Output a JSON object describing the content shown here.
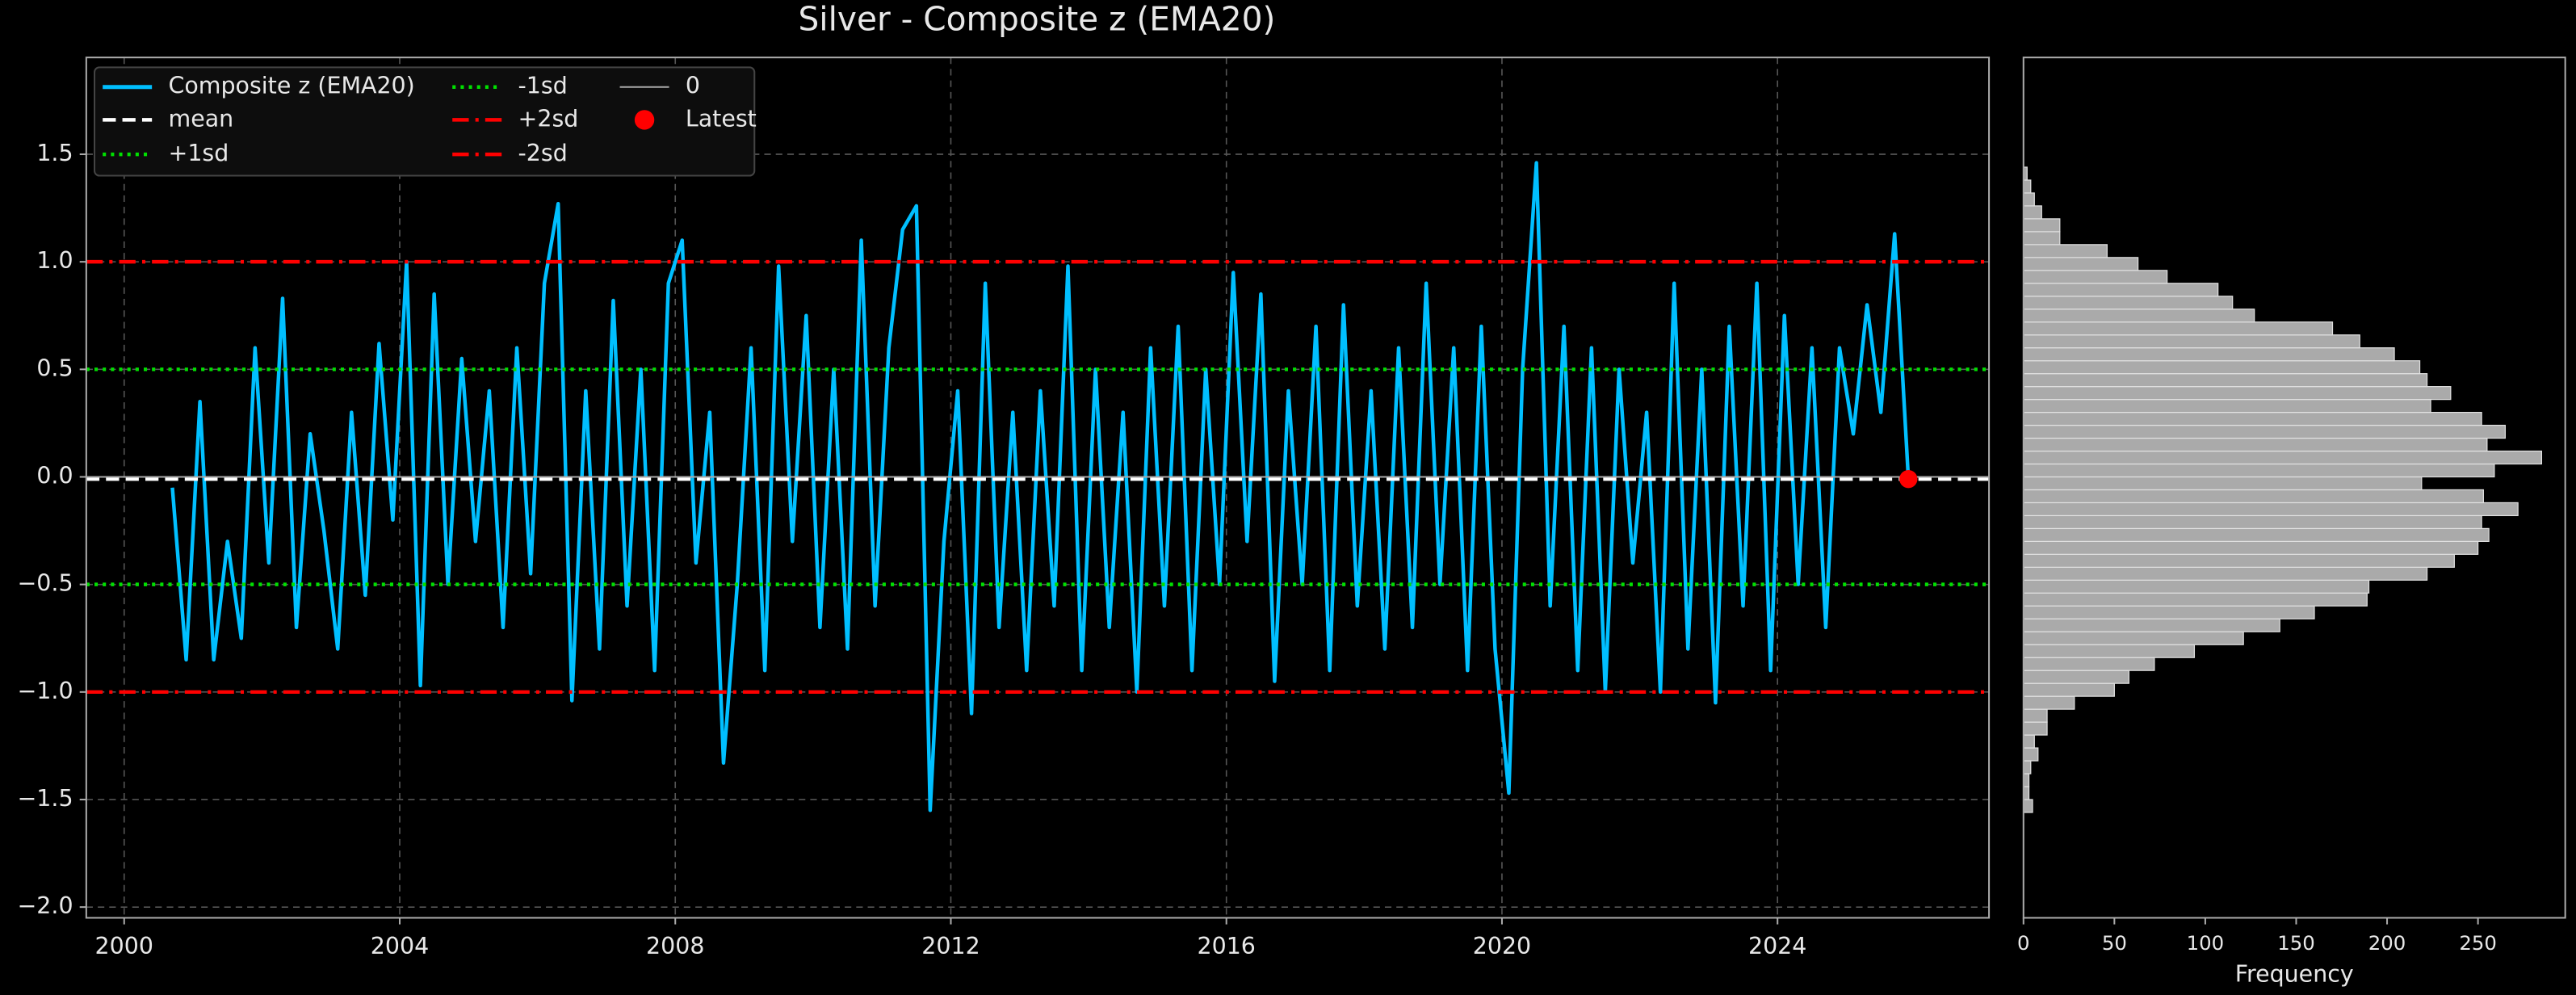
{
  "chart_data": [
    {
      "type": "line",
      "title": "Silver - Composite z (EMA20)",
      "x": [
        2000.7,
        2000.9,
        2001.1,
        2001.3,
        2001.5,
        2001.7,
        2001.9,
        2002.1,
        2002.3,
        2002.5,
        2002.7,
        2002.9,
        2003.1,
        2003.3,
        2003.5,
        2003.7,
        2003.9,
        2004.1,
        2004.3,
        2004.5,
        2004.7,
        2004.9,
        2005.1,
        2005.3,
        2005.5,
        2005.7,
        2005.9,
        2006.1,
        2006.3,
        2006.5,
        2006.7,
        2006.9,
        2007.1,
        2007.3,
        2007.5,
        2007.7,
        2007.9,
        2008.1,
        2008.3,
        2008.5,
        2008.7,
        2008.9,
        2009.1,
        2009.3,
        2009.5,
        2009.7,
        2009.9,
        2010.1,
        2010.3,
        2010.5,
        2010.7,
        2010.9,
        2011.1,
        2011.3,
        2011.5,
        2011.7,
        2011.9,
        2012.1,
        2012.3,
        2012.5,
        2012.7,
        2012.9,
        2013.1,
        2013.3,
        2013.5,
        2013.7,
        2013.9,
        2014.1,
        2014.3,
        2014.5,
        2014.7,
        2014.9,
        2015.1,
        2015.3,
        2015.5,
        2015.7,
        2015.9,
        2016.1,
        2016.3,
        2016.5,
        2016.7,
        2016.9,
        2017.1,
        2017.3,
        2017.5,
        2017.7,
        2017.9,
        2018.1,
        2018.3,
        2018.5,
        2018.7,
        2018.9,
        2019.1,
        2019.3,
        2019.5,
        2019.7,
        2019.9,
        2020.1,
        2020.3,
        2020.5,
        2020.7,
        2020.9,
        2021.1,
        2021.3,
        2021.5,
        2021.7,
        2021.9,
        2022.1,
        2022.3,
        2022.5,
        2022.7,
        2022.9,
        2023.1,
        2023.3,
        2023.5,
        2023.7,
        2023.9,
        2024.1,
        2024.3,
        2024.5,
        2024.7,
        2024.9,
        2025.1,
        2025.3,
        2025.5,
        2025.7,
        2025.9
      ],
      "series": [
        {
          "name": "Composite z (EMA20)",
          "color": "#00bfff",
          "values": [
            -0.05,
            -0.85,
            0.35,
            -0.85,
            -0.3,
            -0.75,
            0.6,
            -0.4,
            0.83,
            -0.7,
            0.2,
            -0.25,
            -0.8,
            0.3,
            -0.55,
            0.62,
            -0.2,
            1.0,
            -0.97,
            0.85,
            -0.5,
            0.55,
            -0.3,
            0.4,
            -0.7,
            0.6,
            -0.45,
            0.9,
            1.27,
            -1.04,
            0.4,
            -0.8,
            0.82,
            -0.6,
            0.5,
            -0.9,
            0.9,
            1.1,
            -0.4,
            0.3,
            -1.33,
            -0.5,
            0.6,
            -0.9,
            0.98,
            -0.3,
            0.75,
            -0.7,
            0.5,
            -0.8,
            1.1,
            -0.6,
            0.6,
            1.15,
            1.26,
            -1.55,
            -0.3,
            0.4,
            -1.1,
            0.9,
            -0.7,
            0.3,
            -0.9,
            0.4,
            -0.6,
            0.98,
            -0.9,
            0.5,
            -0.7,
            0.3,
            -1.0,
            0.6,
            -0.6,
            0.7,
            -0.9,
            0.5,
            -0.5,
            0.95,
            -0.3,
            0.85,
            -0.95,
            0.4,
            -0.5,
            0.7,
            -0.9,
            0.8,
            -0.6,
            0.4,
            -0.8,
            0.6,
            -0.7,
            0.9,
            -0.5,
            0.6,
            -0.9,
            0.7,
            -0.8,
            -1.47,
            0.5,
            1.46,
            -0.6,
            0.7,
            -0.9,
            0.6,
            -1.0,
            0.5,
            -0.4,
            0.3,
            -1.0,
            0.9,
            -0.8,
            0.5,
            -1.05,
            0.7,
            -0.6,
            0.9,
            -0.9,
            0.75,
            -0.5,
            0.6,
            -0.7,
            0.6,
            0.2,
            0.8,
            0.3,
            1.13,
            -0.01
          ]
        }
      ],
      "hlines": [
        {
          "name": "mean",
          "value": -0.01,
          "color": "#ffffff",
          "style": "dashed"
        },
        {
          "name": "+1sd",
          "value": 0.5,
          "color": "#00e000",
          "style": "dotted"
        },
        {
          "name": "-1sd",
          "value": -0.5,
          "color": "#00e000",
          "style": "dotted"
        },
        {
          "name": "+2sd",
          "value": 1.0,
          "color": "#ff0000",
          "style": "dashdot"
        },
        {
          "name": "-2sd",
          "value": -1.0,
          "color": "#ff0000",
          "style": "dashdot"
        },
        {
          "name": "0",
          "value": 0,
          "color": "#aaaaaa",
          "style": "solid"
        }
      ],
      "latest": {
        "name": "Latest",
        "x": 2025.9,
        "value": -0.01,
        "color": "#ff0000"
      },
      "xlim": [
        1999.45,
        2027.07
      ],
      "xticks": [
        2000,
        2004,
        2008,
        2012,
        2016,
        2020,
        2024
      ],
      "ylim": [
        -2.05,
        1.95
      ],
      "yticks": [
        {
          "value": -2.0,
          "label": "−2.0"
        },
        {
          "value": -1.5,
          "label": "−1.5"
        },
        {
          "value": -1.0,
          "label": "−1.0"
        },
        {
          "value": -0.5,
          "label": "−0.5"
        },
        {
          "value": 0.0,
          "label": "0.0"
        },
        {
          "value": 0.5,
          "label": "0.5"
        },
        {
          "value": 1.0,
          "label": "1.0"
        },
        {
          "value": 1.5,
          "label": "1.5"
        }
      ],
      "grid": true,
      "legend": "upper left"
    },
    {
      "type": "histogram",
      "orientation": "horizontal",
      "color": "#aaaaaa",
      "bins": [
        -1.56,
        -1.5,
        -1.44,
        -1.38,
        -1.32,
        -1.26,
        -1.2,
        -1.14,
        -1.08,
        -1.02,
        -0.96,
        -0.9,
        -0.84,
        -0.78,
        -0.72,
        -0.66,
        -0.6,
        -0.54,
        -0.48,
        -0.42,
        -0.36,
        -0.3,
        -0.24,
        -0.18,
        -0.12,
        -0.06,
        0.0,
        0.06,
        0.12,
        0.18,
        0.24,
        0.3,
        0.36,
        0.42,
        0.48,
        0.54,
        0.6,
        0.66,
        0.72,
        0.78,
        0.84,
        0.9,
        0.96,
        1.02,
        1.08,
        1.14,
        1.2,
        1.26,
        1.32,
        1.38,
        1.44
      ],
      "counts": [
        5,
        3,
        3,
        4,
        8,
        6,
        13,
        13,
        28,
        50,
        58,
        72,
        94,
        121,
        141,
        160,
        189,
        190,
        222,
        237,
        250,
        256,
        252,
        272,
        253,
        219,
        259,
        285,
        255,
        265,
        252,
        224,
        235,
        222,
        218,
        204,
        185,
        170,
        127,
        115,
        107,
        79,
        63,
        46,
        20,
        20,
        10,
        6,
        4,
        2
      ],
      "ylim": [
        -2.05,
        1.95
      ],
      "xlim": [
        0,
        298
      ],
      "xticks": [
        0,
        50,
        100,
        150,
        200,
        250
      ],
      "xlabel": "Frequency",
      "grid": false
    }
  ]
}
